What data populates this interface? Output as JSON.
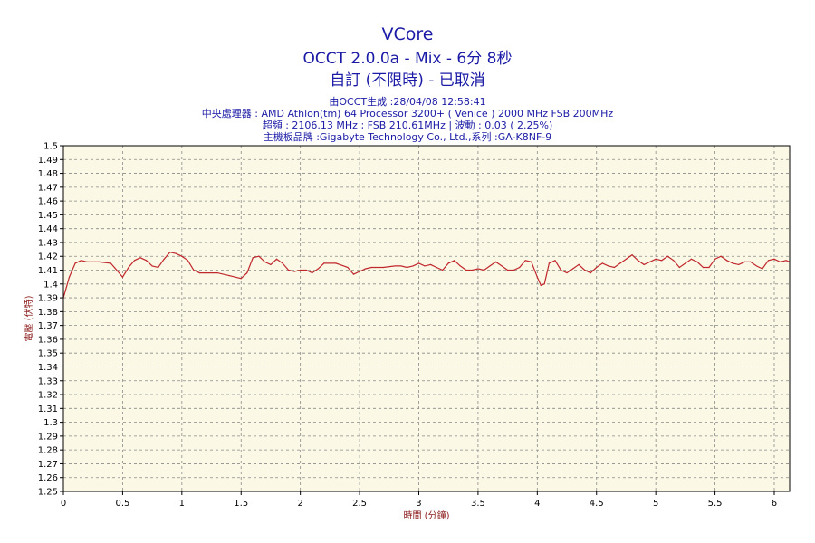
{
  "header": {
    "title": "VCore",
    "subtitle": "OCCT 2.0.0a - Mix - 6分 8秒",
    "status": "自訂 (不限時) - 已取消",
    "generated": "由OCCT生成 :28/04/08 12:58:41",
    "cpu": "中央處理器 : AMD Athlon(tm) 64 Processor 3200+ ( Venice ) 2000 MHz FSB 200MHz",
    "overclock": "超頻 : 2106.13 MHz ; FSB 210.61MHz | 波動 : 0.03 ( 2.25%)",
    "motherboard": "主機板品牌 :Gigabyte Technology Co., Ltd.,系列 :GA-K8NF-9"
  },
  "chart_data": {
    "type": "line",
    "title": "VCore",
    "xlabel": "時間 (分鐘)",
    "ylabel": "電壓 (伏特)",
    "xlim": [
      0,
      6.13
    ],
    "ylim": [
      1.25,
      1.5
    ],
    "x_ticks": [
      "0",
      "0.5",
      "1",
      "1.5",
      "2",
      "2.5",
      "3",
      "3.5",
      "4",
      "4.5",
      "5",
      "5.5",
      "6"
    ],
    "y_ticks": [
      "1.25",
      "1.26",
      "1.27",
      "1.28",
      "1.29",
      "1.3",
      "1.31",
      "1.32",
      "1.33",
      "1.34",
      "1.35",
      "1.36",
      "1.37",
      "1.38",
      "1.39",
      "1.4",
      "1.41",
      "1.42",
      "1.43",
      "1.44",
      "1.45",
      "1.46",
      "1.47",
      "1.48",
      "1.49",
      "1.5"
    ],
    "grid": true,
    "colors": {
      "line": "#c0282d",
      "plot_bg": "#fbf8e6",
      "grid": "#8a8a8a",
      "text": "#1a1aa6",
      "axis_label": "#8b1a1a"
    },
    "series": [
      {
        "x": [
          0,
          0.05,
          0.1,
          0.15,
          0.2,
          0.3,
          0.4,
          0.45,
          0.5,
          0.55,
          0.6,
          0.65,
          0.7,
          0.75,
          0.8,
          0.85,
          0.9,
          0.95,
          1.0,
          1.05,
          1.1,
          1.15,
          1.2,
          1.3,
          1.4,
          1.45,
          1.5,
          1.55,
          1.6,
          1.65,
          1.7,
          1.75,
          1.8,
          1.85,
          1.9,
          1.95,
          2.0,
          2.05,
          2.1,
          2.15,
          2.2,
          2.3,
          2.4,
          2.45,
          2.5,
          2.55,
          2.6,
          2.7,
          2.8,
          2.85,
          2.9,
          2.95,
          3.0,
          3.05,
          3.1,
          3.15,
          3.2,
          3.25,
          3.3,
          3.35,
          3.4,
          3.45,
          3.5,
          3.55,
          3.6,
          3.65,
          3.7,
          3.75,
          3.8,
          3.85,
          3.9,
          3.95,
          4.0,
          4.03,
          4.06,
          4.1,
          4.15,
          4.2,
          4.25,
          4.3,
          4.35,
          4.4,
          4.45,
          4.5,
          4.55,
          4.6,
          4.65,
          4.7,
          4.75,
          4.8,
          4.85,
          4.9,
          4.95,
          5.0,
          5.05,
          5.1,
          5.15,
          5.2,
          5.25,
          5.3,
          5.35,
          5.4,
          5.45,
          5.5,
          5.55,
          5.6,
          5.65,
          5.7,
          5.75,
          5.8,
          5.85,
          5.9,
          5.95,
          6.0,
          6.05,
          6.1,
          6.13
        ],
        "y": [
          1.39,
          1.405,
          1.415,
          1.417,
          1.416,
          1.416,
          1.415,
          1.41,
          1.405,
          1.412,
          1.417,
          1.419,
          1.417,
          1.413,
          1.412,
          1.418,
          1.423,
          1.422,
          1.42,
          1.417,
          1.41,
          1.408,
          1.408,
          1.408,
          1.406,
          1.405,
          1.404,
          1.408,
          1.419,
          1.42,
          1.416,
          1.414,
          1.418,
          1.415,
          1.41,
          1.409,
          1.41,
          1.41,
          1.408,
          1.411,
          1.415,
          1.415,
          1.412,
          1.407,
          1.409,
          1.411,
          1.412,
          1.412,
          1.413,
          1.413,
          1.412,
          1.413,
          1.415,
          1.413,
          1.414,
          1.412,
          1.41,
          1.415,
          1.417,
          1.413,
          1.41,
          1.41,
          1.411,
          1.41,
          1.413,
          1.416,
          1.413,
          1.41,
          1.41,
          1.412,
          1.417,
          1.416,
          1.405,
          1.399,
          1.4,
          1.415,
          1.417,
          1.41,
          1.408,
          1.411,
          1.414,
          1.41,
          1.408,
          1.412,
          1.415,
          1.413,
          1.412,
          1.415,
          1.418,
          1.421,
          1.417,
          1.414,
          1.416,
          1.418,
          1.417,
          1.42,
          1.417,
          1.412,
          1.415,
          1.418,
          1.416,
          1.412,
          1.412,
          1.418,
          1.42,
          1.417,
          1.415,
          1.414,
          1.416,
          1.416,
          1.413,
          1.411,
          1.417,
          1.418,
          1.416,
          1.417,
          1.416
        ]
      }
    ]
  }
}
